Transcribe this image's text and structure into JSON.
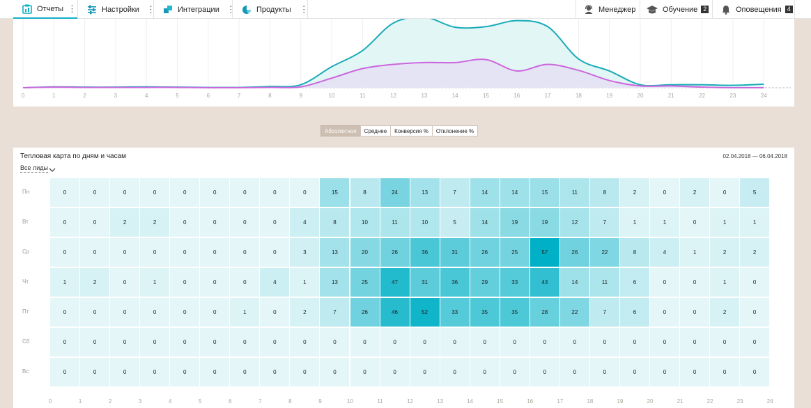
{
  "nav": {
    "items": [
      {
        "label": "Отчеты",
        "icon": "reports-icon",
        "active": true
      },
      {
        "label": "Настройки",
        "icon": "settings-sliders-icon"
      },
      {
        "label": "Интеграции",
        "icon": "integrations-icon"
      },
      {
        "label": "Продукты",
        "icon": "products-icon"
      }
    ],
    "right": [
      {
        "label": "Менеджер",
        "icon": "manager-icon"
      },
      {
        "label": "Обучение",
        "icon": "graduation-cap-icon",
        "badge": "2"
      },
      {
        "label": "Оповещения",
        "icon": "bell-icon",
        "badge": "4"
      }
    ]
  },
  "chart_data": {
    "type": "area",
    "x": [
      0,
      1,
      2,
      3,
      4,
      5,
      6,
      7,
      8,
      9,
      10,
      11,
      12,
      13,
      14,
      15,
      16,
      17,
      18,
      19,
      20,
      21,
      22,
      23,
      24
    ],
    "xlabel": "",
    "ylabel": "",
    "grid": true,
    "series": [
      {
        "color": "#19aab8",
        "values": [
          0,
          1.5,
          1,
          1,
          1.5,
          1,
          0.5,
          0.5,
          2,
          5,
          35,
          62,
          108,
          118,
          101,
          102,
          112,
          102,
          48,
          28,
          5,
          5,
          5,
          4,
          6
        ]
      },
      {
        "color": "#cc66dd",
        "values": [
          0,
          1,
          0.5,
          0.5,
          0.5,
          0.5,
          0,
          0,
          0.5,
          1.5,
          16,
          32,
          39,
          42,
          42,
          47,
          28,
          39,
          29,
          12,
          3,
          3,
          1,
          0,
          0
        ]
      }
    ]
  },
  "modes": [
    "Абсолютное",
    "Среднее",
    "Конверсия %",
    "Отклонение %"
  ],
  "active_mode": 0,
  "heatmap": {
    "title": "Тепловая карта по дням и часам",
    "filter": "Все лиды",
    "date_range": "02.04.2018 — 06.04.2018",
    "days": [
      "Пн",
      "Вт",
      "Ср",
      "Чт",
      "Пт",
      "Сб",
      "Вс"
    ],
    "hours": [
      "0",
      "1",
      "2",
      "3",
      "4",
      "5",
      "6",
      "7",
      "8",
      "9",
      "10",
      "11",
      "12",
      "13",
      "14",
      "15",
      "16",
      "17",
      "18",
      "19",
      "20",
      "21",
      "22",
      "23",
      "24"
    ],
    "values": [
      [
        0,
        0,
        0,
        0,
        0,
        0,
        0,
        0,
        0,
        15,
        8,
        24,
        13,
        7,
        14,
        14,
        15,
        11,
        8,
        2,
        0,
        2,
        0,
        5
      ],
      [
        0,
        0,
        2,
        2,
        0,
        0,
        0,
        0,
        4,
        8,
        10,
        11,
        10,
        5,
        14,
        19,
        19,
        12,
        7,
        1,
        1,
        0,
        1,
        1
      ],
      [
        0,
        0,
        0,
        0,
        0,
        0,
        0,
        0,
        3,
        13,
        20,
        26,
        36,
        31,
        26,
        25,
        57,
        26,
        22,
        8,
        4,
        1,
        2,
        2
      ],
      [
        1,
        2,
        0,
        1,
        0,
        0,
        0,
        4,
        1,
        13,
        25,
        47,
        31,
        36,
        29,
        33,
        43,
        14,
        11,
        6,
        0,
        0,
        1,
        0
      ],
      [
        0,
        0,
        0,
        0,
        0,
        0,
        1,
        0,
        2,
        7,
        26,
        46,
        52,
        33,
        35,
        35,
        28,
        22,
        7,
        6,
        0,
        0,
        2,
        0
      ],
      [
        0,
        0,
        0,
        0,
        0,
        0,
        0,
        0,
        0,
        0,
        0,
        0,
        0,
        0,
        0,
        0,
        0,
        0,
        0,
        0,
        0,
        0,
        0,
        0
      ],
      [
        0,
        0,
        0,
        0,
        0,
        0,
        0,
        0,
        0,
        0,
        0,
        0,
        0,
        0,
        0,
        0,
        0,
        0,
        0,
        0,
        0,
        0,
        0,
        0
      ]
    ]
  }
}
